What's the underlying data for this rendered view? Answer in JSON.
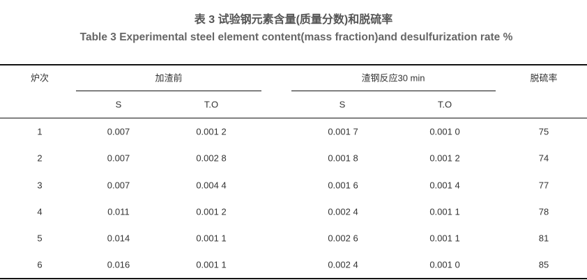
{
  "caption": {
    "title_cn": "表 3 试验钢元素含量(质量分数)和脱硫率",
    "title_en": "Table 3 Experimental steel element content(mass fraction)and desulfurization rate %"
  },
  "table": {
    "headers": {
      "heat": "炉次",
      "before_slag": "加渣前",
      "after_30min": "渣钢反应30 min",
      "rate": "脱硫率",
      "sub": [
        "S",
        "T.O",
        "S",
        "T.O"
      ]
    },
    "rows": [
      [
        "1",
        "0.007",
        "0.001 2",
        "0.001 7",
        "0.001 0",
        "75"
      ],
      [
        "2",
        "0.007",
        "0.002 8",
        "0.001 8",
        "0.001 2",
        "74"
      ],
      [
        "3",
        "0.007",
        "0.004 4",
        "0.001 6",
        "0.001 4",
        "77"
      ],
      [
        "4",
        "0.011",
        "0.001 2",
        "0.002 4",
        "0.001 1",
        "78"
      ],
      [
        "5",
        "0.014",
        "0.001 1",
        "0.002 6",
        "0.001 1",
        "81"
      ],
      [
        "6",
        "0.016",
        "0.001 1",
        "0.002 4",
        "0.001 0",
        "85"
      ]
    ]
  }
}
